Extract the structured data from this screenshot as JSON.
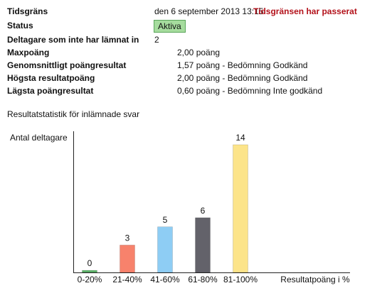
{
  "info": [
    {
      "label": "Tidsgräns",
      "value": "den 6 september 2013 13:15",
      "note": "Tidsgränsen har passerat"
    },
    {
      "label": "Status",
      "badge": "Aktiva"
    },
    {
      "label": "Deltagare som inte har lämnat in",
      "value": "2"
    },
    {
      "label": "Maxpoäng",
      "value": "2,00 poäng"
    },
    {
      "label": "Genomsnittligt poängresultat",
      "value": "1,57 poäng - Bedömning Godkänd"
    },
    {
      "label": "Högsta resultatpoäng",
      "value": "2,00 poäng - Bedömning Godkänd"
    },
    {
      "label": "Lägsta poängresultat",
      "value": "0,60 poäng - Bedömning Inte godkänd"
    }
  ],
  "chart_caption": "Resultatstatistik för inlämnade svar",
  "chart_data": {
    "type": "bar",
    "y_label": "Antal deltagare",
    "x_label": "Resultatpoäng i %",
    "categories": [
      "0-20%",
      "21-40%",
      "41-60%",
      "61-80%",
      "81-100%"
    ],
    "values": [
      0,
      3,
      5,
      6,
      14
    ],
    "colors": [
      "#5fb36b",
      "#f7826c",
      "#8ecdf4",
      "#63626a",
      "#fce48a"
    ]
  }
}
